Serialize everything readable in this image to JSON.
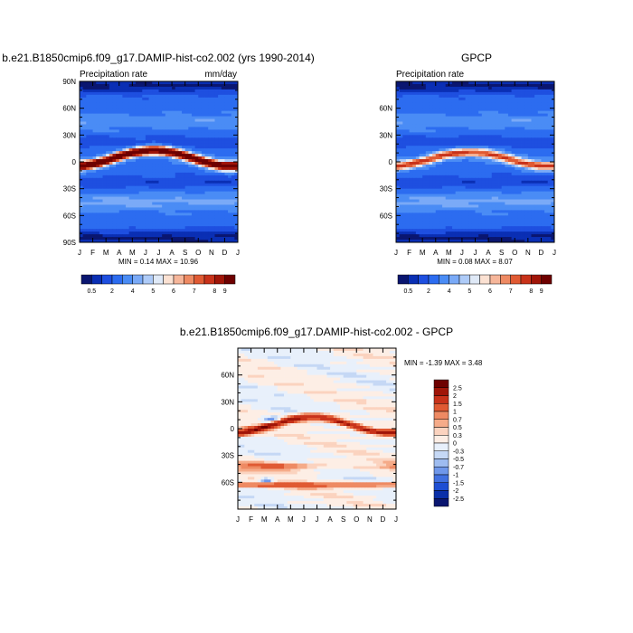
{
  "chart_data": [
    {
      "type": "heatmap",
      "title": "b.e21.B1850cmip6.f09_g17.DAMIP-hist-co2.002 (yrs 1990-2014)",
      "left_label": "Precipitation rate",
      "right_label": "mm/day",
      "x_tick_labels": [
        "J",
        "F",
        "M",
        "A",
        "M",
        "J",
        "J",
        "A",
        "S",
        "O",
        "N",
        "D",
        "J"
      ],
      "y_tick_labels": [
        "90N",
        "60N",
        "30N",
        "0",
        "30S",
        "60S",
        "90S"
      ],
      "y_ticks_deg": [
        90,
        60,
        30,
        0,
        -30,
        -60,
        -90
      ],
      "stats_text": "MIN =   0.14 MAX =   10.96",
      "min": 0.14,
      "max": 10.96,
      "colorbar_labels": [
        "0.5",
        "2",
        "4",
        "5",
        "6",
        "7",
        "8",
        "9"
      ],
      "field": "model"
    },
    {
      "type": "heatmap",
      "title": "GPCP",
      "left_label": "Precipitation rate",
      "right_label": "",
      "x_tick_labels": [
        "J",
        "F",
        "M",
        "A",
        "M",
        "J",
        "J",
        "A",
        "S",
        "O",
        "N",
        "D",
        "J"
      ],
      "y_tick_labels": [
        "60N",
        "30N",
        "0",
        "30S",
        "60S"
      ],
      "y_ticks_deg": [
        60,
        30,
        0,
        -30,
        -60
      ],
      "stats_text": "MIN =   0.08 MAX =   8.07",
      "min": 0.08,
      "max": 8.07,
      "colorbar_labels": [
        "0.5",
        "2",
        "4",
        "5",
        "6",
        "7",
        "8",
        "9"
      ],
      "field": "obs"
    },
    {
      "type": "heatmap",
      "title": "b.e21.B1850cmip6.f09_g17.DAMIP-hist-co2.002 - GPCP",
      "left_label": "",
      "right_label": "",
      "x_tick_labels": [
        "J",
        "F",
        "M",
        "A",
        "M",
        "J",
        "J",
        "A",
        "S",
        "O",
        "N",
        "D",
        "J"
      ],
      "y_tick_labels": [
        "60N",
        "30N",
        "0",
        "30S",
        "60S"
      ],
      "y_ticks_deg": [
        60,
        30,
        0,
        -30,
        -60
      ],
      "stats_text": "MIN =  -1.39 MAX =   3.48",
      "min": -1.39,
      "max": 3.48,
      "colorbar_labels": [
        "2.5",
        "2",
        "1.5",
        "1",
        "0.7",
        "0.5",
        "0.3",
        "0",
        "-0.3",
        "-0.5",
        "-0.7",
        "-1",
        "-1.5",
        "-2",
        "-2.5"
      ],
      "field": "diff"
    }
  ],
  "colors": {
    "precip_scale": [
      "#0a1670",
      "#0a2fb4",
      "#1e4fe0",
      "#2c6cf0",
      "#4a8cf5",
      "#7aaaf7",
      "#aecbf8",
      "#dfe9f7",
      "#fbe1d2",
      "#f6b69a",
      "#ee8a63",
      "#e05a33",
      "#c8321a",
      "#a01508",
      "#6e0000"
    ],
    "diff_scale": [
      "#6e0000",
      "#a01508",
      "#c8321a",
      "#e05a33",
      "#ee8a63",
      "#f5ab89",
      "#fbd3bf",
      "#fdeee5",
      "#e8f0fb",
      "#c5d8f5",
      "#9ebcf0",
      "#6f97ea",
      "#4170e0",
      "#1e4ed3",
      "#0a2fa8",
      "#0a1670"
    ]
  }
}
